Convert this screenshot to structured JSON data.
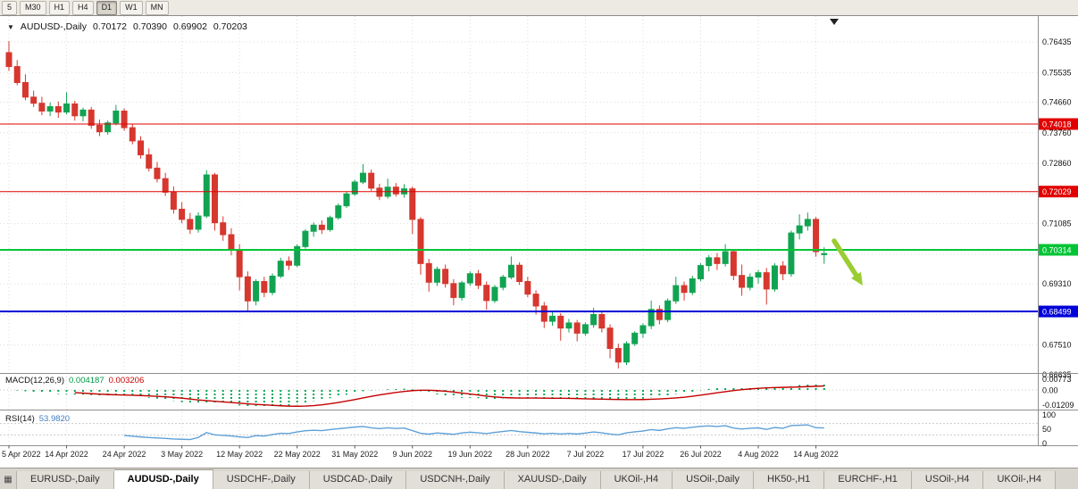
{
  "toolbar": {
    "timeframes": [
      "5",
      "M30",
      "H1",
      "H4",
      "D1",
      "W1",
      "MN"
    ],
    "active_timeframe": "D1"
  },
  "chart_title": {
    "dropdown_icon": "▼",
    "symbol": "AUDUSD-,Daily",
    "open": "0.70172",
    "high": "0.70390",
    "low": "0.69902",
    "close": "0.70203"
  },
  "chart_data": {
    "type": "candlestick",
    "symbol": "AUDUSD",
    "timeframe": "Daily",
    "current_bar": {
      "open": 0.70172,
      "high": 0.7039,
      "low": 0.69902,
      "close": 0.70203
    },
    "date_labels": [
      "5 Apr 2022",
      "14 Apr 2022",
      "24 Apr 2022",
      "3 May 2022",
      "12 May 2022",
      "22 May 2022",
      "31 May 2022",
      "9 Jun 2022",
      "19 Jun 2022",
      "28 Jun 2022",
      "7 Jul 2022",
      "17 Jul 2022",
      "26 Jul 2022",
      "4 Aug 2022",
      "14 Aug 2022"
    ],
    "label_every_n_candles": 7,
    "y_axis": {
      "min": 0.66635,
      "max": 0.76435,
      "visible_labels": [
        0.76435,
        0.75535,
        0.7466,
        0.7376,
        0.7286,
        0.71085,
        0.6931,
        0.6751,
        0.66635
      ],
      "hidden_gridlines": [
        0.7196,
        0.70185,
        0.6841
      ]
    },
    "horizontal_lines": [
      {
        "price": 0.74018,
        "label": "0.74018",
        "color": "#E00000",
        "thickness": 1
      },
      {
        "price": 0.72029,
        "label": "0.72029",
        "color": "#E00000",
        "thickness": 1
      },
      {
        "price": 0.70314,
        "label": "0.70314",
        "color": "#00C435",
        "thickness": 2
      },
      {
        "price": 0.68499,
        "label": "0.68499",
        "color": "#0000D8",
        "thickness": 2
      }
    ],
    "annotation_arrow": {
      "direction": "down-right",
      "color": "#9ACD32",
      "from": [
        934,
        252
      ],
      "to": [
        966,
        302
      ]
    },
    "indicators": {
      "macd": {
        "label": "MACD(12,26,9)",
        "main_value": "0.004187",
        "signal_value": "0.003206",
        "axis_labels": [
          "0.00773",
          "0.00",
          "-0.01209"
        ],
        "params": {
          "fast": 12,
          "slow": 26,
          "signal": 9
        }
      },
      "rsi": {
        "label": "RSI(14)",
        "value": "53.9820",
        "axis_labels": [
          "100",
          "50",
          "0"
        ],
        "period": 14,
        "levels": [
          70,
          30
        ]
      }
    },
    "candles": [
      [
        0.7612,
        0.7646,
        0.7558,
        0.7571
      ],
      [
        0.7571,
        0.759,
        0.7516,
        0.7524
      ],
      [
        0.7524,
        0.7548,
        0.7472,
        0.7481
      ],
      [
        0.7481,
        0.75,
        0.7452,
        0.7463
      ],
      [
        0.7463,
        0.7482,
        0.7428,
        0.744
      ],
      [
        0.744,
        0.7465,
        0.7425,
        0.7453
      ],
      [
        0.7453,
        0.7468,
        0.742,
        0.7437
      ],
      [
        0.7437,
        0.7495,
        0.743,
        0.7461
      ],
      [
        0.7461,
        0.747,
        0.7412,
        0.7426
      ],
      [
        0.7426,
        0.745,
        0.741,
        0.7443
      ],
      [
        0.7443,
        0.7452,
        0.7388,
        0.7398
      ],
      [
        0.7398,
        0.7415,
        0.7366,
        0.7379
      ],
      [
        0.7379,
        0.7412,
        0.737,
        0.7405
      ],
      [
        0.7405,
        0.7458,
        0.7398,
        0.744
      ],
      [
        0.744,
        0.7448,
        0.7382,
        0.7391
      ],
      [
        0.7391,
        0.7402,
        0.7342,
        0.7352
      ],
      [
        0.7352,
        0.7366,
        0.73,
        0.7311
      ],
      [
        0.7311,
        0.733,
        0.7262,
        0.7272
      ],
      [
        0.7272,
        0.729,
        0.723,
        0.7241
      ],
      [
        0.7241,
        0.7258,
        0.719,
        0.7201
      ],
      [
        0.7201,
        0.7218,
        0.7138,
        0.7151
      ],
      [
        0.7151,
        0.7172,
        0.711,
        0.7121
      ],
      [
        0.7121,
        0.714,
        0.7078,
        0.7092
      ],
      [
        0.7092,
        0.7142,
        0.7082,
        0.7131
      ],
      [
        0.7131,
        0.7266,
        0.7125,
        0.7252
      ],
      [
        0.7252,
        0.7258,
        0.7088,
        0.7111
      ],
      [
        0.7111,
        0.713,
        0.7058,
        0.7076
      ],
      [
        0.7076,
        0.7095,
        0.7015,
        0.7032
      ],
      [
        0.7032,
        0.7048,
        0.6912,
        0.6952
      ],
      [
        0.6952,
        0.6968,
        0.685,
        0.6881
      ],
      [
        0.6881,
        0.6945,
        0.6868,
        0.6938
      ],
      [
        0.6938,
        0.6952,
        0.6892,
        0.6906
      ],
      [
        0.6906,
        0.6962,
        0.6898,
        0.6954
      ],
      [
        0.6954,
        0.7008,
        0.6948,
        0.6998
      ],
      [
        0.6998,
        0.7012,
        0.6972,
        0.6986
      ],
      [
        0.6986,
        0.7048,
        0.698,
        0.7041
      ],
      [
        0.7041,
        0.7092,
        0.7035,
        0.7086
      ],
      [
        0.7086,
        0.7112,
        0.707,
        0.7104
      ],
      [
        0.7104,
        0.7118,
        0.7078,
        0.7091
      ],
      [
        0.7091,
        0.7132,
        0.7085,
        0.7126
      ],
      [
        0.7126,
        0.7168,
        0.712,
        0.7161
      ],
      [
        0.7161,
        0.7202,
        0.7155,
        0.7196
      ],
      [
        0.7196,
        0.7238,
        0.719,
        0.7231
      ],
      [
        0.7231,
        0.7284,
        0.7225,
        0.7257
      ],
      [
        0.7257,
        0.7268,
        0.7205,
        0.7213
      ],
      [
        0.7213,
        0.7226,
        0.7178,
        0.7189
      ],
      [
        0.7189,
        0.7241,
        0.7182,
        0.7216
      ],
      [
        0.7216,
        0.7228,
        0.7188,
        0.7196
      ],
      [
        0.7196,
        0.7225,
        0.7185,
        0.7211
      ],
      [
        0.7211,
        0.7218,
        0.7078,
        0.7121
      ],
      [
        0.7121,
        0.7128,
        0.6958,
        0.6991
      ],
      [
        0.6991,
        0.7005,
        0.6908,
        0.6936
      ],
      [
        0.6936,
        0.6982,
        0.6925,
        0.6974
      ],
      [
        0.6974,
        0.6988,
        0.692,
        0.6932
      ],
      [
        0.6932,
        0.6945,
        0.6868,
        0.6891
      ],
      [
        0.6891,
        0.694,
        0.6882,
        0.6934
      ],
      [
        0.6934,
        0.6968,
        0.6925,
        0.6961
      ],
      [
        0.6961,
        0.6972,
        0.6916,
        0.6927
      ],
      [
        0.6927,
        0.6938,
        0.6855,
        0.6882
      ],
      [
        0.6882,
        0.6928,
        0.6875,
        0.6921
      ],
      [
        0.6921,
        0.6958,
        0.6912,
        0.6951
      ],
      [
        0.6951,
        0.7012,
        0.6945,
        0.6986
      ],
      [
        0.6986,
        0.6995,
        0.6928,
        0.6938
      ],
      [
        0.6938,
        0.6952,
        0.6892,
        0.6901
      ],
      [
        0.6901,
        0.6912,
        0.6841,
        0.6866
      ],
      [
        0.6866,
        0.6878,
        0.6801,
        0.6821
      ],
      [
        0.6821,
        0.6848,
        0.6808,
        0.6836
      ],
      [
        0.6836,
        0.6845,
        0.6764,
        0.6801
      ],
      [
        0.6801,
        0.6828,
        0.6788,
        0.6816
      ],
      [
        0.6816,
        0.6825,
        0.6762,
        0.6786
      ],
      [
        0.6786,
        0.6818,
        0.6778,
        0.6811
      ],
      [
        0.6811,
        0.6861,
        0.6802,
        0.6841
      ],
      [
        0.6841,
        0.6852,
        0.6788,
        0.6801
      ],
      [
        0.6801,
        0.6812,
        0.6712,
        0.6741
      ],
      [
        0.6741,
        0.6755,
        0.6682,
        0.6701
      ],
      [
        0.6701,
        0.6762,
        0.6692,
        0.6755
      ],
      [
        0.6755,
        0.6792,
        0.6748,
        0.6786
      ],
      [
        0.6786,
        0.6815,
        0.6772,
        0.6808
      ],
      [
        0.6808,
        0.6882,
        0.6798,
        0.6856
      ],
      [
        0.6856,
        0.6868,
        0.6812,
        0.6826
      ],
      [
        0.6826,
        0.6888,
        0.6818,
        0.6881
      ],
      [
        0.6881,
        0.6952,
        0.6872,
        0.6926
      ],
      [
        0.6926,
        0.6938,
        0.6882,
        0.6906
      ],
      [
        0.6906,
        0.6955,
        0.6898,
        0.6946
      ],
      [
        0.6946,
        0.6992,
        0.6938,
        0.6985
      ],
      [
        0.6985,
        0.7016,
        0.6968,
        0.7008
      ],
      [
        0.7008,
        0.7022,
        0.6972,
        0.6991
      ],
      [
        0.6991,
        0.7048,
        0.6982,
        0.7026
      ],
      [
        0.7026,
        0.7032,
        0.6942,
        0.6956
      ],
      [
        0.6956,
        0.6988,
        0.6896,
        0.6921
      ],
      [
        0.6921,
        0.6962,
        0.6912,
        0.6951
      ],
      [
        0.6951,
        0.6972,
        0.6932,
        0.6964
      ],
      [
        0.6964,
        0.6978,
        0.687,
        0.6916
      ],
      [
        0.6916,
        0.6992,
        0.6908,
        0.6984
      ],
      [
        0.6984,
        0.6998,
        0.6942,
        0.6961
      ],
      [
        0.6961,
        0.7088,
        0.6952,
        0.7081
      ],
      [
        0.7081,
        0.7136,
        0.7062,
        0.7102
      ],
      [
        0.7102,
        0.7141,
        0.7088,
        0.7121
      ],
      [
        0.7121,
        0.7128,
        0.7011,
        0.7026
      ],
      [
        0.70172,
        0.7039,
        0.69902,
        0.70203
      ]
    ]
  },
  "tabs": {
    "list_icon": "▦",
    "items": [
      {
        "label": "EURUSD-,Daily",
        "active": false
      },
      {
        "label": "AUDUSD-,Daily",
        "active": true
      },
      {
        "label": "USDCHF-,Daily",
        "active": false
      },
      {
        "label": "USDCAD-,Daily",
        "active": false
      },
      {
        "label": "USDCNH-,Daily",
        "active": false
      },
      {
        "label": "XAUUSD-,Daily",
        "active": false
      },
      {
        "label": "UKOil-,H4",
        "active": false
      },
      {
        "label": "USOil-,Daily",
        "active": false
      },
      {
        "label": "HK50-,H1",
        "active": false
      },
      {
        "label": "EURCHF-,H1",
        "active": false
      },
      {
        "label": "USOil-,H4",
        "active": false
      },
      {
        "label": "UKOil-,H4",
        "active": false
      }
    ]
  },
  "colors": {
    "bull_candle": "#12A352",
    "bear_candle": "#D6372E",
    "grid": "#DCDCDC",
    "separator": "#8f8f8f",
    "macd_histogram": "#00A651",
    "macd_signal": "#C40000",
    "rsi_line": "#5FA0D8",
    "arrow": "#9ACD32"
  }
}
